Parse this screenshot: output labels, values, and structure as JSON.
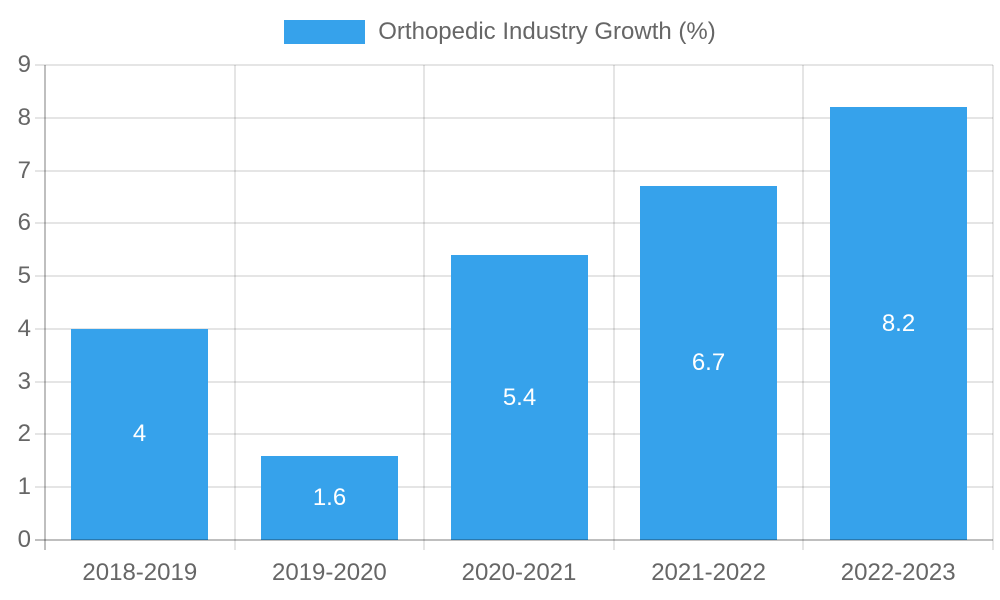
{
  "chart_data": {
    "type": "bar",
    "legend": "Orthopedic Industry Growth (%)",
    "categories": [
      "2018-2019",
      "2019-2020",
      "2020-2021",
      "2021-2022",
      "2022-2023"
    ],
    "values": [
      4,
      1.6,
      5.4,
      6.7,
      8.2
    ],
    "value_labels": [
      "4",
      "1.6",
      "5.4",
      "6.7",
      "8.2"
    ],
    "ylim": [
      0,
      9
    ],
    "ytick_step": 1,
    "ytick_labels": [
      "0",
      "1",
      "2",
      "3",
      "4",
      "5",
      "6",
      "7",
      "8",
      "9"
    ],
    "legend_position": "top-center",
    "grid": "on",
    "xlabel": "",
    "ylabel": "",
    "colors": {
      "bar": "#36A2EB",
      "bar_value_label": "#ffffff",
      "axis_text": "#666666",
      "gridline": "rgba(0,0,0,0.1)",
      "zero_line": "rgba(0,0,0,0.25)",
      "background": "#ffffff"
    }
  }
}
